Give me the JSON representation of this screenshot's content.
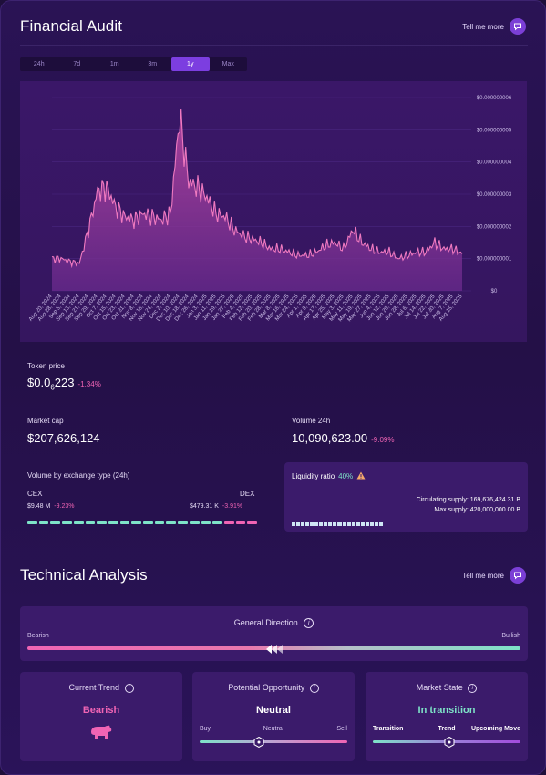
{
  "audit": {
    "title": "Financial Audit",
    "tell_me_more": "Tell me more",
    "tabs": [
      "24h",
      "7d",
      "1m",
      "3m",
      "1y",
      "Max"
    ],
    "active_tab": "1y"
  },
  "chart_data": {
    "type": "area",
    "y_ticks": [
      "$0.000000006",
      "$0.000000005",
      "$0.000000004",
      "$0.000000003",
      "$0.000000002",
      "$0.000000001",
      "$0"
    ],
    "x_ticks": [
      "Aug 20, 2024",
      "Aug 28, 2024",
      "Sep 5, 2024",
      "Sep 13, 2024",
      "Sep 21, 2024",
      "Sep 29, 2024",
      "Oct 7, 2024",
      "Oct 15, 2024",
      "Oct 23, 2024",
      "Oct 31, 2024",
      "Nov 8, 2024",
      "Nov 16, 2024",
      "Nov 24, 2024",
      "Dec 2, 2024",
      "Dec 10, 2024",
      "Dec 18, 2024",
      "Dec 26, 2024",
      "Jan 3, 2025",
      "Jan 11, 2025",
      "Jan 19, 2025",
      "Jan 27, 2025",
      "Feb 4, 2025",
      "Feb 12, 2025",
      "Feb 20, 2025",
      "Feb 28, 2025",
      "Mar 8, 2025",
      "Mar 16, 2025",
      "Mar 24, 2025",
      "Apr 1, 2025",
      "Apr 9, 2025",
      "Apr 17, 2025",
      "Apr 25, 2025",
      "May 3, 2025",
      "May 11, 2025",
      "May 19, 2025",
      "May 27, 2025",
      "Jun 4, 2025",
      "Jun 12, 2025",
      "Jun 20, 2025",
      "Jun 28, 2025",
      "Jul 6, 2025",
      "Jul 14, 2025",
      "Jul 22, 2025",
      "Jul 30, 2025",
      "Aug 7, 2025",
      "Aug 15, 2025"
    ],
    "ylim": [
      0,
      6e-09
    ],
    "y_per_tick": [
      1e-09,
      1e-09,
      9e-10,
      8.5e-10,
      1.9e-09,
      3.1e-09,
      3.2e-09,
      2.6e-09,
      2.3e-09,
      2.2e-09,
      2.4e-09,
      2.3e-09,
      2.2e-09,
      2.4e-09,
      5.4e-09,
      3.4e-09,
      3.2e-09,
      2.9e-09,
      2.4e-09,
      2.3e-09,
      1.9e-09,
      1.7e-09,
      1.6e-09,
      1.5e-09,
      1.3e-09,
      1.3e-09,
      1.2e-09,
      1.1e-09,
      1.1e-09,
      1.2e-09,
      1.4e-09,
      1.5e-09,
      1.3e-09,
      1.9e-09,
      1.5e-09,
      1.3e-09,
      1.2e-09,
      1.2e-09,
      1e-09,
      1.1e-09,
      1.2e-09,
      1.2e-09,
      1.5e-09,
      1.3e-09,
      1.3e-09,
      1.15e-09
    ]
  },
  "stats": {
    "token_price_label": "Token price",
    "token_price_prefix": "$0.0",
    "token_price_sub": "6",
    "token_price_suffix": "223",
    "token_price_change": "-1.34%",
    "market_cap_label": "Market cap",
    "market_cap": "$207,626,124",
    "volume_label": "Volume 24h",
    "volume": "10,090,623.00",
    "volume_change": "-9.09%"
  },
  "exchange": {
    "label": "Volume by exchange type (24h)",
    "cex_label": "CEX",
    "dex_label": "DEX",
    "cex_value": "$9.48 M",
    "cex_change": "-9.23%",
    "dex_value": "$479.31 K",
    "dex_change": "-3.91%",
    "cex_share": 0.95
  },
  "liquidity": {
    "label": "Liquidity ratio",
    "value": "40%",
    "circulating": "Circulating supply: 169,676,424.31 B",
    "max": "Max supply: 420,000,000.00 B",
    "ratio": 0.4
  },
  "technical": {
    "title": "Technical Analysis",
    "tell_me_more": "Tell me more",
    "general_direction": "General Direction",
    "bearish": "Bearish",
    "bullish": "Bullish",
    "direction_position": 0.5,
    "current_trend_label": "Current Trend",
    "current_trend_value": "Bearish",
    "opportunity_label": "Potential Opportunity",
    "opportunity_value": "Neutral",
    "opportunity_ticks": [
      "Buy",
      "Neutral",
      "Sell"
    ],
    "opportunity_position": 0.4,
    "market_state_label": "Market State",
    "market_state_value": "In transition",
    "market_state_ticks": [
      "Transition",
      "Trend",
      "Upcoming Move"
    ],
    "market_state_position": 0.52
  },
  "colors": {
    "accent": "#7c3ee0",
    "negative": "#f064b4",
    "positive": "#7ee3c8",
    "line": "#f07ac0",
    "bearish": "#f064b4",
    "transition": "#7ee3c8"
  }
}
